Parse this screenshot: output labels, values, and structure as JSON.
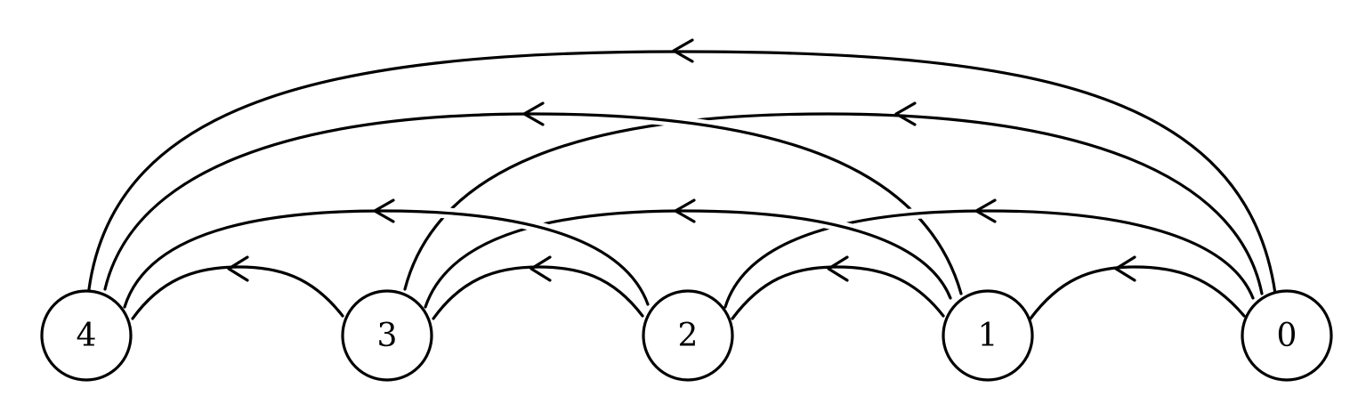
{
  "nodes": [
    {
      "id": "4",
      "label": "4"
    },
    {
      "id": "3",
      "label": "3"
    },
    {
      "id": "2",
      "label": "2"
    },
    {
      "id": "1",
      "label": "1"
    },
    {
      "id": "0",
      "label": "0"
    }
  ],
  "edges": [
    {
      "from": "1",
      "to": "0"
    },
    {
      "from": "2",
      "to": "1"
    },
    {
      "from": "3",
      "to": "2"
    },
    {
      "from": "4",
      "to": "3"
    },
    {
      "from": "2",
      "to": "0"
    },
    {
      "from": "3",
      "to": "1"
    },
    {
      "from": "4",
      "to": "2"
    },
    {
      "from": "3",
      "to": "0"
    },
    {
      "from": "4",
      "to": "1"
    },
    {
      "from": "4",
      "to": "0"
    }
  ]
}
